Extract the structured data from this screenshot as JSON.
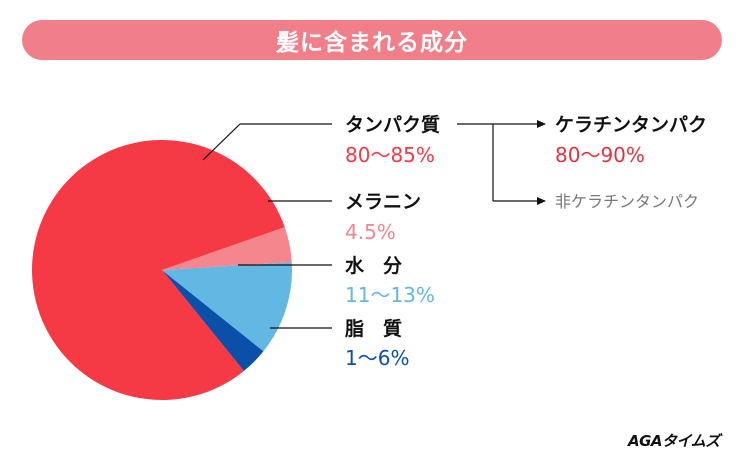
{
  "title": "髪に含まれる成分",
  "brand": "AGAタイムズ",
  "colors": {
    "title_bg": "#f07f89",
    "protein": "#f53a45",
    "melanin": "#f6868d",
    "water": "#63b7e3",
    "lipid": "#0a4fa8",
    "keratin_text": "#e8313d",
    "non_keratin_text": "#777777"
  },
  "chart_data": {
    "type": "pie",
    "title": "髪に含まれる成分",
    "slices": [
      {
        "name": "タンパク質",
        "range": "80〜85%",
        "value": 82.5,
        "color": "#f53a45"
      },
      {
        "name": "メラニン",
        "range": "4.5%",
        "value": 4.5,
        "color": "#f6868d"
      },
      {
        "name": "水　分",
        "range": "11〜13%",
        "value": 12,
        "color": "#63b7e3"
      },
      {
        "name": "脂　質",
        "range": "1〜6%",
        "value": 3.5,
        "color": "#0a4fa8"
      }
    ],
    "breakdown": {
      "parent": "タンパク質",
      "items": [
        {
          "name": "ケラチンタンパク",
          "range": "80〜90%"
        },
        {
          "name": "非ケラチンタンパク",
          "range": ""
        }
      ]
    }
  }
}
